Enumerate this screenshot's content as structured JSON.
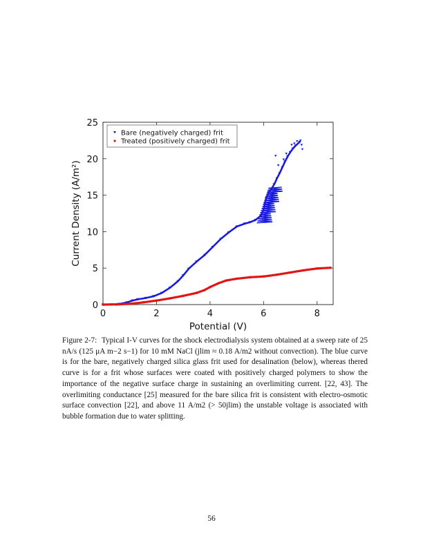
{
  "figure": {
    "chart_data": {
      "type": "scatter",
      "title": "",
      "xlabel": "Potential (V)",
      "ylabel": "Current Density (A/m²)",
      "xlim": [
        0,
        8.6
      ],
      "ylim": [
        0,
        25
      ],
      "xticks": [
        0,
        2,
        4,
        6,
        8
      ],
      "yticks": [
        0,
        5,
        10,
        15,
        20,
        25
      ],
      "grid": false,
      "legend_position": "top-left",
      "series": [
        {
          "name": "Bare (negatively charged) frit",
          "color": "#1a1adf",
          "marker": "triangle-down",
          "points": [
            [
              0,
              0
            ],
            [
              0.3,
              0.02
            ],
            [
              0.6,
              0.08
            ],
            [
              0.9,
              0.3
            ],
            [
              1.1,
              0.55
            ],
            [
              1.3,
              0.72
            ],
            [
              1.6,
              0.9
            ],
            [
              1.9,
              1.15
            ],
            [
              2.2,
              1.6
            ],
            [
              2.5,
              2.3
            ],
            [
              2.8,
              3.2
            ],
            [
              3.0,
              4.0
            ],
            [
              3.2,
              4.9
            ],
            [
              3.5,
              5.9
            ],
            [
              3.8,
              6.8
            ],
            [
              4.1,
              7.9
            ],
            [
              4.4,
              9.0
            ],
            [
              4.7,
              9.9
            ],
            [
              5.0,
              10.7
            ],
            [
              5.3,
              11.1
            ],
            [
              5.5,
              11.3
            ],
            [
              5.7,
              11.6
            ],
            [
              5.9,
              12.2
            ],
            [
              6.0,
              13.0
            ],
            [
              6.05,
              13.8
            ],
            [
              6.1,
              14.6
            ],
            [
              6.2,
              15.4
            ],
            [
              6.3,
              15.9
            ],
            [
              6.4,
              16.5
            ],
            [
              6.5,
              17.3
            ],
            [
              6.6,
              18.0
            ],
            [
              6.7,
              18.8
            ],
            [
              6.8,
              19.6
            ],
            [
              6.9,
              20.3
            ],
            [
              7.0,
              20.9
            ],
            [
              7.1,
              21.4
            ],
            [
              7.2,
              21.8
            ],
            [
              7.35,
              22.3
            ]
          ],
          "scatter_outliers": [
            [
              6.45,
              20.4
            ],
            [
              6.55,
              19.1
            ],
            [
              6.75,
              19.9
            ],
            [
              6.85,
              20.7
            ],
            [
              7.05,
              21.9
            ],
            [
              7.15,
              22.1
            ],
            [
              7.25,
              22.4
            ],
            [
              7.38,
              22.5
            ],
            [
              7.45,
              21.3
            ],
            [
              7.42,
              21.9
            ]
          ]
        },
        {
          "name": "Treated (positively charged) frit",
          "color": "#e01515",
          "marker": "circle",
          "points": [
            [
              0,
              0
            ],
            [
              0.5,
              0.02
            ],
            [
              1.0,
              0.1
            ],
            [
              1.5,
              0.3
            ],
            [
              2.0,
              0.55
            ],
            [
              2.5,
              0.85
            ],
            [
              3.0,
              1.2
            ],
            [
              3.5,
              1.6
            ],
            [
              3.8,
              2.0
            ],
            [
              4.0,
              2.4
            ],
            [
              4.3,
              2.9
            ],
            [
              4.6,
              3.3
            ],
            [
              5.0,
              3.55
            ],
            [
              5.5,
              3.75
            ],
            [
              6.0,
              3.85
            ],
            [
              6.5,
              4.1
            ],
            [
              7.0,
              4.4
            ],
            [
              7.5,
              4.7
            ],
            [
              8.0,
              4.95
            ],
            [
              8.5,
              5.05
            ]
          ]
        }
      ]
    }
  },
  "caption": {
    "label": "Figure 2-7:",
    "text": "Typical I-V curves for the shock electrodialysis system obtained at a sweep rate of 25 nA/s (125 μA m−2 s−1) for 10 mM NaCl (jlim ≈ 0.18 A/m2 without convection). The blue curve is for the bare, negatively charged silica glass frit used for desalination (below), whereas thered curve is for a frit whose surfaces were coated with positively charged polymers to show the importance of the negative surface charge in sustaining an overlimiting current. [22, 43]. The overlimiting conductance [25] measured for the bare silica frit is consistent with electro-osmotic surface convection [22], and above 11 A/m2 (> 50jlim) the unstable voltage is associated with bubble formation due to water splitting."
  },
  "page_number": "56"
}
